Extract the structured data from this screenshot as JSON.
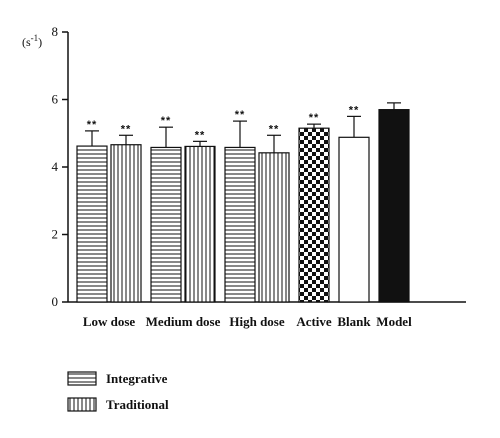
{
  "chart_data": {
    "type": "bar",
    "unit_label_base": "(s",
    "unit_label_exp": "-1",
    "unit_label_close": ")",
    "ylim": [
      0,
      8
    ],
    "yticks": [
      "0",
      "2",
      "4",
      "6",
      "8"
    ],
    "ytick_values": [
      0,
      2,
      4,
      6,
      8
    ],
    "groups": [
      {
        "label": "Low dose",
        "bars": [
          {
            "series": "Integrative",
            "pattern": "horizontal",
            "value": 4.62,
            "error": 0.45,
            "sig": "**"
          },
          {
            "series": "Traditional",
            "pattern": "vertical",
            "value": 4.66,
            "error": 0.28,
            "sig": "**"
          }
        ]
      },
      {
        "label": "Medium dose",
        "bars": [
          {
            "series": "Integrative",
            "pattern": "horizontal",
            "value": 4.58,
            "error": 0.6,
            "sig": "**"
          },
          {
            "series": "Traditional",
            "pattern": "vertical",
            "value": 4.61,
            "error": 0.15,
            "sig": "**"
          }
        ]
      },
      {
        "label": "High dose",
        "bars": [
          {
            "series": "Integrative",
            "pattern": "horizontal",
            "value": 4.58,
            "error": 0.78,
            "sig": "**"
          },
          {
            "series": "Traditional",
            "pattern": "vertical",
            "value": 4.42,
            "error": 0.52,
            "sig": "**"
          }
        ]
      },
      {
        "label": "Active",
        "bars": [
          {
            "series": "Active",
            "pattern": "checker",
            "value": 5.15,
            "error": 0.12,
            "sig": "**"
          }
        ]
      },
      {
        "label": "Blank",
        "bars": [
          {
            "series": "Blank",
            "pattern": "white",
            "value": 4.88,
            "error": 0.62,
            "sig": "**"
          }
        ]
      },
      {
        "label": "Model",
        "bars": [
          {
            "series": "Model",
            "pattern": "black",
            "value": 5.7,
            "error": 0.2,
            "sig": ""
          }
        ]
      }
    ],
    "legend": [
      {
        "name": "Integrative",
        "pattern": "horizontal"
      },
      {
        "name": "Traditional",
        "pattern": "vertical"
      }
    ],
    "legend_position": "bottom-left",
    "grid": false
  }
}
